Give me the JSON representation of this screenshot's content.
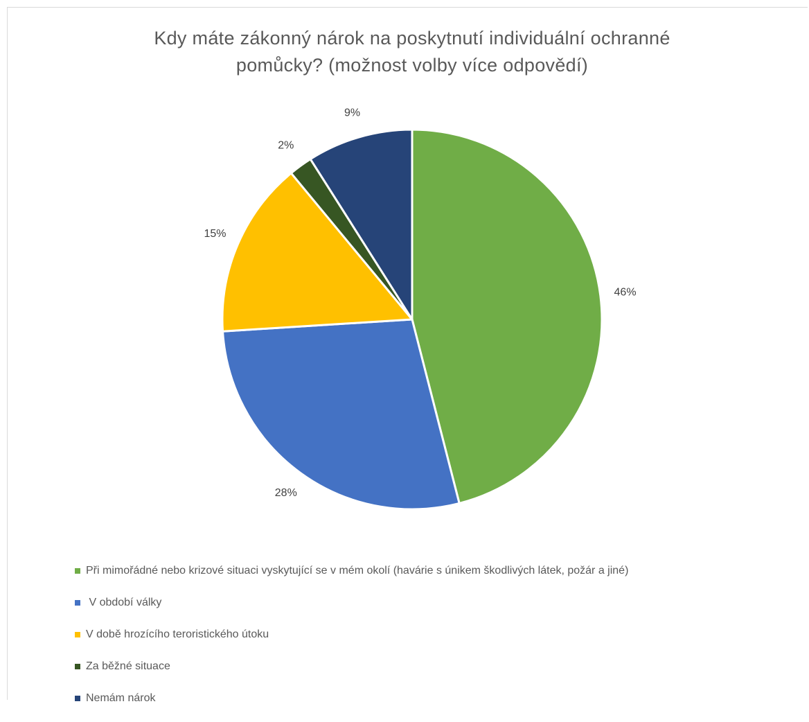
{
  "chart_data": {
    "type": "pie",
    "title": "Kdy máte zákonný nárok na poskytnutí individuální ochranné pomůcky? (možnost volby více odpovědí)",
    "title_lines": [
      "Kdy máte zákonný nárok na poskytnutí individuální ochranné",
      "pomůcky? (možnost volby více odpovědí)"
    ],
    "legend_position": "bottom",
    "slices": [
      {
        "label": "Při mimořádné nebo krizové situaci vyskytující se v mém okolí (havárie s únikem škodlivých látek, požár a jiné)",
        "value": 46,
        "display": "46%",
        "color": "#70AD47"
      },
      {
        "label": " V období války",
        "value": 28,
        "display": "28%",
        "color": "#4472C4"
      },
      {
        "label": "V době hrozícího teroristického útoku",
        "value": 15,
        "display": "15%",
        "color": "#FFC000"
      },
      {
        "label": "Za běžné situace",
        "value": 2,
        "display": "2%",
        "color": "#375623"
      },
      {
        "label": "Nemám nárok",
        "value": 9,
        "display": "9%",
        "color": "#264478"
      }
    ]
  }
}
